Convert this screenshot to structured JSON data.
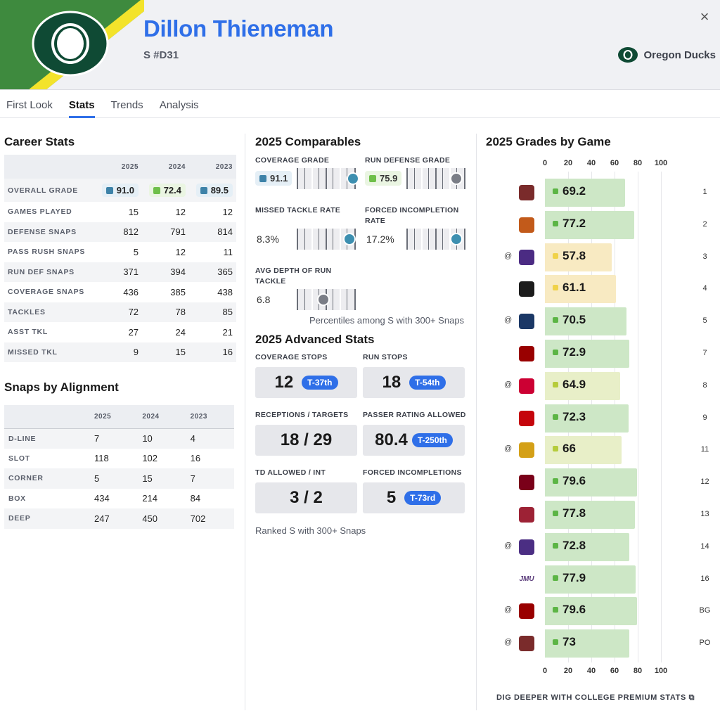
{
  "header": {
    "player_name": "Dillon Thieneman",
    "position": "S #D31",
    "team_name": "Oregon Ducks",
    "close_icon": "×"
  },
  "tabs": [
    "First Look",
    "Stats",
    "Trends",
    "Analysis"
  ],
  "active_tab": "Stats",
  "career_stats": {
    "title": "Career Stats",
    "years": [
      "2025",
      "2024",
      "2023"
    ],
    "overall_label": "OVERALL GRADE",
    "overall": [
      {
        "value": "91.0",
        "color": "#3d82a8",
        "bg": "#e5eff6"
      },
      {
        "value": "72.4",
        "color": "#6fbf4a",
        "bg": "#eaf5e2"
      },
      {
        "value": "89.5",
        "color": "#3d82a8",
        "bg": "#e5eff6"
      }
    ],
    "rows": [
      {
        "label": "GAMES PLAYED",
        "values": [
          "15",
          "12",
          "12"
        ]
      },
      {
        "label": "DEFENSE SNAPS",
        "values": [
          "812",
          "791",
          "814"
        ]
      },
      {
        "label": "PASS RUSH SNAPS",
        "values": [
          "5",
          "12",
          "11"
        ]
      },
      {
        "label": "RUN DEF SNAPS",
        "values": [
          "371",
          "394",
          "365"
        ]
      },
      {
        "label": "COVERAGE SNAPS",
        "values": [
          "436",
          "385",
          "438"
        ]
      },
      {
        "label": "TACKLES",
        "values": [
          "72",
          "78",
          "85"
        ]
      },
      {
        "label": "ASST TKL",
        "values": [
          "27",
          "24",
          "21"
        ]
      },
      {
        "label": "MISSED TKL",
        "values": [
          "9",
          "15",
          "16"
        ]
      }
    ]
  },
  "alignment": {
    "title": "Snaps by Alignment",
    "years": [
      "2025",
      "2024",
      "2023"
    ],
    "rows": [
      {
        "label": "D-LINE",
        "values": [
          "7",
          "10",
          "4"
        ]
      },
      {
        "label": "SLOT",
        "values": [
          "118",
          "102",
          "16"
        ]
      },
      {
        "label": "CORNER",
        "values": [
          "5",
          "15",
          "7"
        ]
      },
      {
        "label": "BOX",
        "values": [
          "434",
          "214",
          "84"
        ]
      },
      {
        "label": "DEEP",
        "values": [
          "247",
          "450",
          "702"
        ]
      }
    ]
  },
  "comparables": {
    "title": "2025 Comparables",
    "items": [
      {
        "label": "COVERAGE GRADE",
        "value": "91.1",
        "pill": true,
        "pill_color": "#3d82a8",
        "pill_bg": "#e5eff6",
        "percentile": 0.97,
        "dot_color": "#3d8fb0"
      },
      {
        "label": "RUN DEFENSE GRADE",
        "value": "75.9",
        "pill": true,
        "pill_color": "#6fbf4a",
        "pill_bg": "#eaf5e2",
        "percentile": 0.86,
        "dot_color": "#7a7d86"
      },
      {
        "label": "MISSED TACKLE RATE",
        "value": "8.3%",
        "pill": false,
        "percentile": 0.91,
        "dot_color": "#3d8fb0"
      },
      {
        "label": "FORCED INCOMPLETION RATE",
        "value": "17.2%",
        "pill": false,
        "percentile": 0.86,
        "dot_color": "#3d8fb0"
      },
      {
        "label": "AVG DEPTH OF RUN TACKLE",
        "value": "6.8",
        "pill": false,
        "percentile": 0.45,
        "dot_color": "#7a7d86"
      }
    ],
    "note": "Percentiles among S with 300+ Snaps"
  },
  "advanced": {
    "title": "2025 Advanced Stats",
    "items": [
      {
        "label": "COVERAGE STOPS",
        "value": "12",
        "rank": "T-37th"
      },
      {
        "label": "RUN STOPS",
        "value": "18",
        "rank": "T-54th"
      },
      {
        "label": "RECEPTIONS / TARGETS",
        "value": "18 / 29",
        "rank": ""
      },
      {
        "label": "PASSER RATING ALLOWED",
        "value": "80.4",
        "rank": "T-250th"
      },
      {
        "label": "TD ALLOWED / INT",
        "value": "3 / 2",
        "rank": ""
      },
      {
        "label": "FORCED INCOMPLETIONS",
        "value": "5",
        "rank": "T-73rd"
      }
    ],
    "note": "Ranked S with 300+ Snaps"
  },
  "games": {
    "title": "2025 Grades by Game",
    "ticks": [
      "0",
      "20",
      "40",
      "60",
      "80",
      "100"
    ],
    "rows": [
      {
        "away": "",
        "logo": "montana-state-logo",
        "grade": "69.2",
        "game": "1",
        "tier": "green"
      },
      {
        "away": "",
        "logo": "oklahoma-state-logo",
        "grade": "77.2",
        "game": "2",
        "tier": "green"
      },
      {
        "away": "@",
        "logo": "northwestern-logo",
        "grade": "57.8",
        "game": "3",
        "tier": "yellow"
      },
      {
        "away": "",
        "logo": "oregon-state-logo",
        "grade": "61.1",
        "game": "4",
        "tier": "yellow"
      },
      {
        "away": "@",
        "logo": "penn-state-logo",
        "grade": "70.5",
        "game": "5",
        "tier": "green"
      },
      {
        "away": "",
        "logo": "indiana-logo",
        "grade": "72.9",
        "game": "7",
        "tier": "green"
      },
      {
        "away": "@",
        "logo": "rutgers-logo",
        "grade": "64.9",
        "game": "8",
        "tier": "yellowgreen"
      },
      {
        "away": "",
        "logo": "wisconsin-logo",
        "grade": "72.3",
        "game": "9",
        "tier": "green"
      },
      {
        "away": "@",
        "logo": "iowa-logo",
        "grade": "66",
        "game": "11",
        "tier": "yellowgreen"
      },
      {
        "away": "",
        "logo": "minnesota-logo",
        "grade": "79.6",
        "game": "12",
        "tier": "green"
      },
      {
        "away": "",
        "logo": "usc-logo",
        "grade": "77.8",
        "game": "13",
        "tier": "green"
      },
      {
        "away": "@",
        "logo": "washington-logo",
        "grade": "72.8",
        "game": "14",
        "tier": "green"
      },
      {
        "away": "",
        "logo": "jmu-logo",
        "grade": "77.9",
        "game": "16",
        "tier": "green"
      },
      {
        "away": "@",
        "logo": "texas-tech-logo",
        "grade": "79.6",
        "game": "BG",
        "tier": "green"
      },
      {
        "away": "@",
        "logo": "indiana-logo",
        "grade": "73",
        "game": "PO",
        "tier": "green"
      }
    ],
    "logo_text": {
      "jmu-logo": "JMU"
    }
  },
  "premium_link": "DIG DEEPER WITH COLLEGE PREMIUM STATS"
}
